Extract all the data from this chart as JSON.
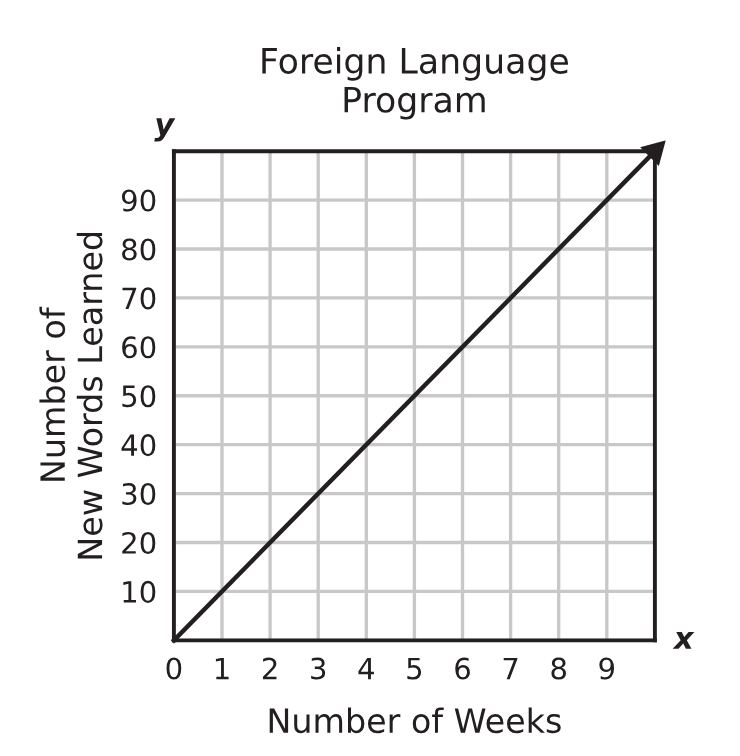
{
  "chart_data": {
    "type": "line",
    "title": "Foreign Language\nProgram",
    "xlabel": "Number of Weeks",
    "ylabel": "Number of\nNew Words Learned",
    "x": [
      0,
      10
    ],
    "series": [
      {
        "color": "#231f20",
        "values": [
          0,
          100
        ]
      }
    ],
    "xlim": [
      0,
      10
    ],
    "ylim": [
      0,
      100
    ],
    "xticks": [
      0,
      1,
      2,
      3,
      4,
      5,
      6,
      7,
      8,
      9,
      {
        "value": 10,
        "label": null
      }
    ],
    "yticks": [
      {
        "value": 0,
        "label": null
      },
      10,
      20,
      30,
      40,
      50,
      60,
      70,
      80,
      90,
      {
        "value": 100,
        "label": null
      }
    ],
    "grid": true,
    "line_style": "solid",
    "annotations": [
      "x",
      "y"
    ]
  }
}
